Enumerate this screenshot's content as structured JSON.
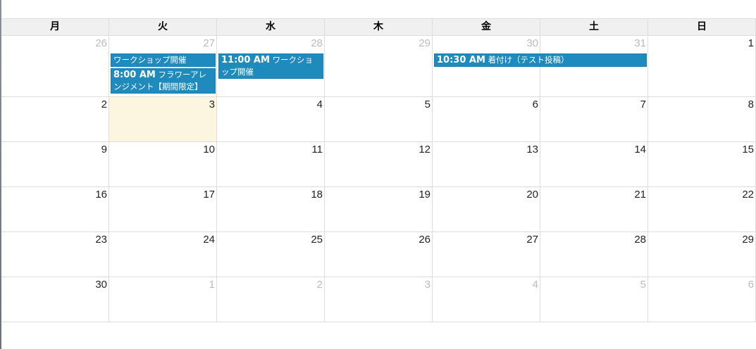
{
  "weekdays": [
    "月",
    "火",
    "水",
    "木",
    "金",
    "土",
    "日"
  ],
  "weeks": [
    [
      {
        "d": "26",
        "other": true
      },
      {
        "d": "27",
        "other": true
      },
      {
        "d": "28",
        "other": true
      },
      {
        "d": "29",
        "other": true
      },
      {
        "d": "30",
        "other": true
      },
      {
        "d": "31",
        "other": true
      },
      {
        "d": "1"
      }
    ],
    [
      {
        "d": "2"
      },
      {
        "d": "3",
        "today": true
      },
      {
        "d": "4"
      },
      {
        "d": "5"
      },
      {
        "d": "6"
      },
      {
        "d": "7"
      },
      {
        "d": "8"
      }
    ],
    [
      {
        "d": "9"
      },
      {
        "d": "10"
      },
      {
        "d": "11"
      },
      {
        "d": "12"
      },
      {
        "d": "13"
      },
      {
        "d": "14"
      },
      {
        "d": "15"
      }
    ],
    [
      {
        "d": "16"
      },
      {
        "d": "17"
      },
      {
        "d": "18"
      },
      {
        "d": "19"
      },
      {
        "d": "20"
      },
      {
        "d": "21"
      },
      {
        "d": "22"
      }
    ],
    [
      {
        "d": "23"
      },
      {
        "d": "24"
      },
      {
        "d": "25"
      },
      {
        "d": "26"
      },
      {
        "d": "27"
      },
      {
        "d": "28"
      },
      {
        "d": "29"
      }
    ],
    [
      {
        "d": "30"
      },
      {
        "d": "1",
        "other": true
      },
      {
        "d": "2",
        "other": true
      },
      {
        "d": "3",
        "other": true
      },
      {
        "d": "4",
        "other": true
      },
      {
        "d": "5",
        "other": true
      },
      {
        "d": "6",
        "other": true
      }
    ]
  ],
  "events": [
    {
      "week": 0,
      "day": 1,
      "span": 1,
      "slot": 0,
      "time": "",
      "title": "ワークショップ開催"
    },
    {
      "week": 0,
      "day": 1,
      "span": 1,
      "slot": 1,
      "time": "8:00 AM",
      "title": "フラワーアレンジメント【期間限定】"
    },
    {
      "week": 0,
      "day": 2,
      "span": 1,
      "slot": 0,
      "time": "11:00 AM",
      "title": "ワークショップ開催"
    },
    {
      "week": 0,
      "day": 4,
      "span": 2,
      "slot": 0,
      "time": "10:30 AM",
      "title": "着付け（テスト投稿）"
    }
  ],
  "colors": {
    "event": "#1f8bbd",
    "today": "#fcf6e1",
    "header": "#f0f0f0"
  }
}
